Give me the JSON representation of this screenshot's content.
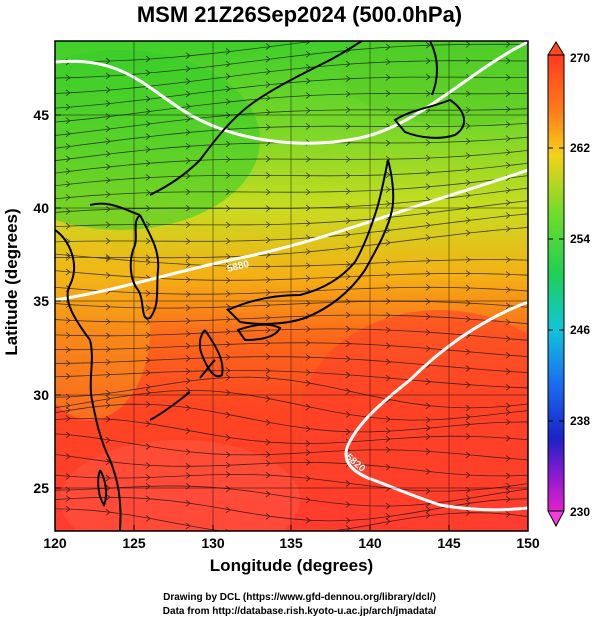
{
  "title": "MSM 21Z26Sep2024 (500.0hPa)",
  "xlabel": "Longitude (degrees)",
  "ylabel": "Latitude  (degrees)",
  "credits": {
    "line1": "Drawing by DCL (https://www.gfd-dennou.org/library/dcl/)",
    "line2": "Data from http://database.rish.kyoto-u.ac.jp/arch/jmadata/"
  },
  "chart_data": {
    "type": "heatmap",
    "x_ticks": [
      "120",
      "125",
      "130",
      "135",
      "140",
      "145",
      "150"
    ],
    "y_ticks": [
      "25",
      "30",
      "35",
      "40",
      "45"
    ],
    "xlim": [
      120,
      150
    ],
    "ylim": [
      22.5,
      47.5
    ],
    "grid": true,
    "colorbar": {
      "ticks": [
        "270",
        "262",
        "254",
        "246",
        "238",
        "230"
      ],
      "range": [
        230,
        270
      ]
    },
    "contour_labels": [
      "5880",
      "5820"
    ],
    "colors": {
      "cold": "#cc33cc",
      "mid": "#2ecc2e",
      "warm": "#ff3300",
      "contour": "#ffffff",
      "coast": "#000000"
    }
  }
}
